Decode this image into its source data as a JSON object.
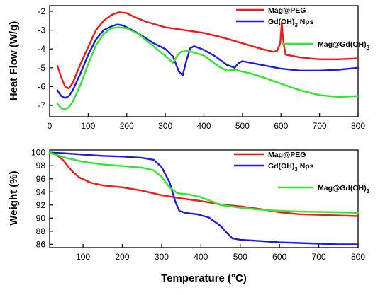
{
  "chart_data": [
    {
      "type": "line",
      "ylabel": "Heat Flow (W/g)",
      "xlabel": "",
      "xlim": [
        0,
        800
      ],
      "ylim": [
        -7.6,
        -1.7
      ],
      "xticks": [
        0,
        100,
        200,
        300,
        400,
        500,
        600,
        700,
        800
      ],
      "yticks": [
        -7,
        -6,
        -5,
        -4,
        -3,
        -2
      ],
      "grid": false,
      "legend_position": "top-right",
      "series": [
        {
          "name": "Mag@PEG",
          "legend_main": "Mag@PEG",
          "legend_sub": "",
          "legend_tail": "",
          "color": "#ee1c1c",
          "points": [
            [
              20,
              -4.9
            ],
            [
              30,
              -5.5
            ],
            [
              40,
              -6.0
            ],
            [
              50,
              -6.1
            ],
            [
              60,
              -5.8
            ],
            [
              80,
              -4.8
            ],
            [
              100,
              -3.9
            ],
            [
              120,
              -3.0
            ],
            [
              140,
              -2.5
            ],
            [
              160,
              -2.2
            ],
            [
              180,
              -2.05
            ],
            [
              200,
              -2.1
            ],
            [
              220,
              -2.3
            ],
            [
              250,
              -2.55
            ],
            [
              300,
              -2.85
            ],
            [
              350,
              -3.0
            ],
            [
              400,
              -3.15
            ],
            [
              450,
              -3.4
            ],
            [
              500,
              -3.7
            ],
            [
              550,
              -4.0
            ],
            [
              580,
              -4.15
            ],
            [
              590,
              -4.1
            ],
            [
              598,
              -3.7
            ],
            [
              602,
              -2.6
            ],
            [
              606,
              -3.6
            ],
            [
              612,
              -4.3
            ],
            [
              650,
              -4.45
            ],
            [
              700,
              -4.55
            ],
            [
              750,
              -4.55
            ],
            [
              800,
              -4.5
            ]
          ]
        },
        {
          "name": "Gd(OH)3 Nps",
          "legend_main": "Gd(OH)",
          "legend_sub": "3",
          "legend_tail": " Nps",
          "color": "#1c1cdc",
          "points": [
            [
              20,
              -6.2
            ],
            [
              30,
              -6.5
            ],
            [
              40,
              -6.6
            ],
            [
              50,
              -6.5
            ],
            [
              60,
              -6.2
            ],
            [
              80,
              -5.3
            ],
            [
              100,
              -4.3
            ],
            [
              120,
              -3.5
            ],
            [
              140,
              -3.0
            ],
            [
              160,
              -2.8
            ],
            [
              175,
              -2.7
            ],
            [
              190,
              -2.75
            ],
            [
              210,
              -2.95
            ],
            [
              240,
              -3.3
            ],
            [
              270,
              -3.7
            ],
            [
              300,
              -4.0
            ],
            [
              320,
              -4.4
            ],
            [
              335,
              -5.2
            ],
            [
              345,
              -5.4
            ],
            [
              355,
              -4.6
            ],
            [
              365,
              -3.95
            ],
            [
              375,
              -3.85
            ],
            [
              400,
              -4.05
            ],
            [
              430,
              -4.4
            ],
            [
              460,
              -4.85
            ],
            [
              480,
              -5.0
            ],
            [
              490,
              -4.75
            ],
            [
              500,
              -4.65
            ],
            [
              550,
              -4.85
            ],
            [
              600,
              -5.05
            ],
            [
              650,
              -5.15
            ],
            [
              700,
              -5.15
            ],
            [
              750,
              -5.1
            ],
            [
              800,
              -5.0
            ]
          ]
        },
        {
          "name": "Mag@Gd(OH)3",
          "legend_main": "Mag@Gd(OH)",
          "legend_sub": "3",
          "legend_tail": "",
          "color": "#2ee82e",
          "points": [
            [
              20,
              -6.9
            ],
            [
              30,
              -7.15
            ],
            [
              40,
              -7.2
            ],
            [
              50,
              -7.1
            ],
            [
              60,
              -6.8
            ],
            [
              80,
              -5.9
            ],
            [
              100,
              -4.8
            ],
            [
              120,
              -3.8
            ],
            [
              140,
              -3.2
            ],
            [
              160,
              -2.9
            ],
            [
              180,
              -2.85
            ],
            [
              200,
              -2.9
            ],
            [
              230,
              -3.2
            ],
            [
              260,
              -3.7
            ],
            [
              290,
              -4.2
            ],
            [
              310,
              -4.55
            ],
            [
              320,
              -4.75
            ],
            [
              330,
              -4.4
            ],
            [
              340,
              -4.15
            ],
            [
              360,
              -4.1
            ],
            [
              400,
              -4.35
            ],
            [
              440,
              -4.95
            ],
            [
              460,
              -5.15
            ],
            [
              480,
              -5.1
            ],
            [
              520,
              -5.3
            ],
            [
              560,
              -5.55
            ],
            [
              600,
              -5.85
            ],
            [
              650,
              -6.2
            ],
            [
              700,
              -6.45
            ],
            [
              750,
              -6.55
            ],
            [
              800,
              -6.5
            ]
          ]
        }
      ]
    },
    {
      "type": "line",
      "ylabel": "Weight (%)",
      "xlabel": "Temperature (°C)",
      "xlim": [
        15,
        800
      ],
      "ylim": [
        85.5,
        100.4
      ],
      "xticks": [
        100,
        200,
        300,
        400,
        500,
        600,
        700,
        800
      ],
      "yticks": [
        86,
        88,
        90,
        92,
        94,
        96,
        98,
        100
      ],
      "grid": false,
      "legend_position": "top-right",
      "series": [
        {
          "name": "Mag@PEG",
          "legend_main": "Mag@PEG",
          "legend_sub": "",
          "legend_tail": "",
          "color": "#ee1c1c",
          "points": [
            [
              15,
              100
            ],
            [
              30,
              99.8
            ],
            [
              50,
              98.8
            ],
            [
              70,
              97.3
            ],
            [
              90,
              96.2
            ],
            [
              120,
              95.4
            ],
            [
              150,
              95.0
            ],
            [
              200,
              94.7
            ],
            [
              250,
              94.2
            ],
            [
              300,
              93.5
            ],
            [
              350,
              93.0
            ],
            [
              400,
              92.6
            ],
            [
              450,
              92.1
            ],
            [
              500,
              91.8
            ],
            [
              550,
              91.4
            ],
            [
              600,
              90.9
            ],
            [
              650,
              90.6
            ],
            [
              700,
              90.5
            ],
            [
              750,
              90.4
            ],
            [
              800,
              90.3
            ]
          ]
        },
        {
          "name": "Gd(OH)3 Nps",
          "legend_main": "Gd(OH)",
          "legend_sub": "3",
          "legend_tail": " Nps",
          "color": "#1c1cdc",
          "points": [
            [
              15,
              100
            ],
            [
              50,
              99.9
            ],
            [
              100,
              99.7
            ],
            [
              150,
              99.5
            ],
            [
              200,
              99.4
            ],
            [
              250,
              99.2
            ],
            [
              280,
              98.9
            ],
            [
              300,
              97.8
            ],
            [
              320,
              95.5
            ],
            [
              335,
              92.5
            ],
            [
              345,
              91.1
            ],
            [
              360,
              90.8
            ],
            [
              390,
              90.6
            ],
            [
              420,
              90.1
            ],
            [
              450,
              88.8
            ],
            [
              470,
              87.5
            ],
            [
              480,
              86.9
            ],
            [
              500,
              86.7
            ],
            [
              550,
              86.5
            ],
            [
              600,
              86.3
            ],
            [
              650,
              86.2
            ],
            [
              700,
              86.1
            ],
            [
              750,
              86.0
            ],
            [
              800,
              86.0
            ]
          ]
        },
        {
          "name": "Mag@Gd(OH)3",
          "legend_main": "Mag@Gd(OH)",
          "legend_sub": "3",
          "legend_tail": "",
          "color": "#2ee82e",
          "points": [
            [
              15,
              100
            ],
            [
              50,
              99.3
            ],
            [
              100,
              98.6
            ],
            [
              150,
              98.2
            ],
            [
              200,
              97.95
            ],
            [
              250,
              97.7
            ],
            [
              280,
              97.3
            ],
            [
              300,
              96.3
            ],
            [
              320,
              94.7
            ],
            [
              340,
              93.8
            ],
            [
              370,
              93.6
            ],
            [
              400,
              93.2
            ],
            [
              430,
              92.5
            ],
            [
              450,
              92.0
            ],
            [
              500,
              91.6
            ],
            [
              550,
              91.3
            ],
            [
              600,
              91.1
            ],
            [
              650,
              91.0
            ],
            [
              700,
              90.95
            ],
            [
              750,
              90.9
            ],
            [
              800,
              90.8
            ]
          ]
        }
      ]
    }
  ]
}
